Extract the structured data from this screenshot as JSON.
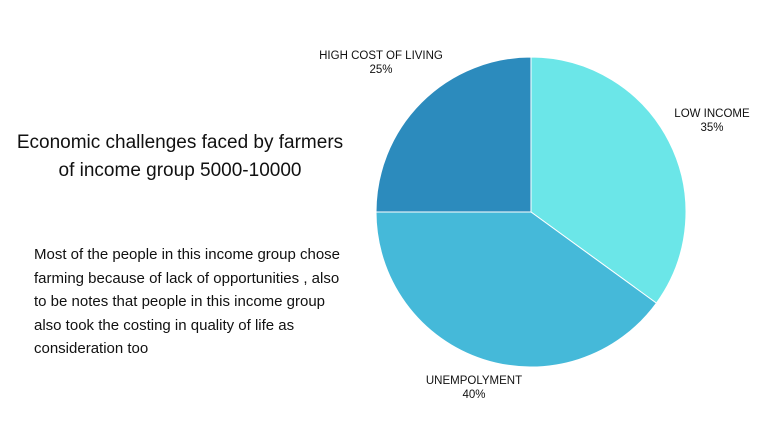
{
  "info": {
    "title_lines": [
      "Economic challenges faced by farmers",
      "of income group 5000-10000"
    ],
    "description": "Most of the people in this income group chose farming because of lack of opportunities , also to be notes that people in this income group also took the costing in quality of life as consideration too"
  },
  "chart_data": {
    "type": "pie",
    "title": "Economic challenges faced by farmers of income group 5000-10000",
    "slices": [
      {
        "label": "LOW INCOME",
        "value": 35,
        "value_label": "35%",
        "color": "#6be6e8"
      },
      {
        "label": "UNEMPOLYMENT",
        "value": 40,
        "value_label": "40%",
        "color": "#45b9d9"
      },
      {
        "label": "HIGH COST OF LIVING",
        "value": 25,
        "value_label": "25%",
        "color": "#2c8bbd"
      }
    ],
    "start_angle": "12 o'clock",
    "direction": "clockwise",
    "legend": "none"
  }
}
